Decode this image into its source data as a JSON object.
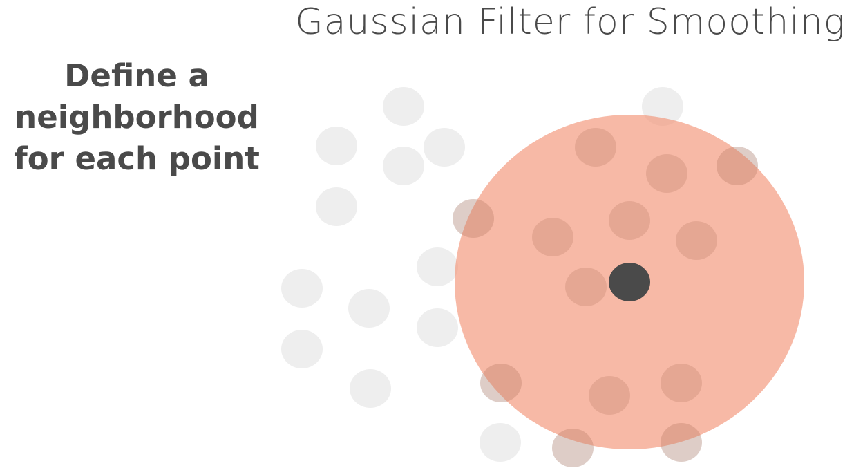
{
  "slide": {
    "title": "Gaussian Filter for Smoothing",
    "caption_lines": [
      "Define a",
      "neighborhood",
      "for each point"
    ]
  },
  "colors": {
    "text": "#4a4a4a",
    "point": "#eeeeee",
    "neighborhood": "#f28e6f",
    "center_point": "#4a4a4a"
  },
  "icons": {
    "point": "circle",
    "neighborhood": "circle",
    "center_point": "filled-circle"
  }
}
